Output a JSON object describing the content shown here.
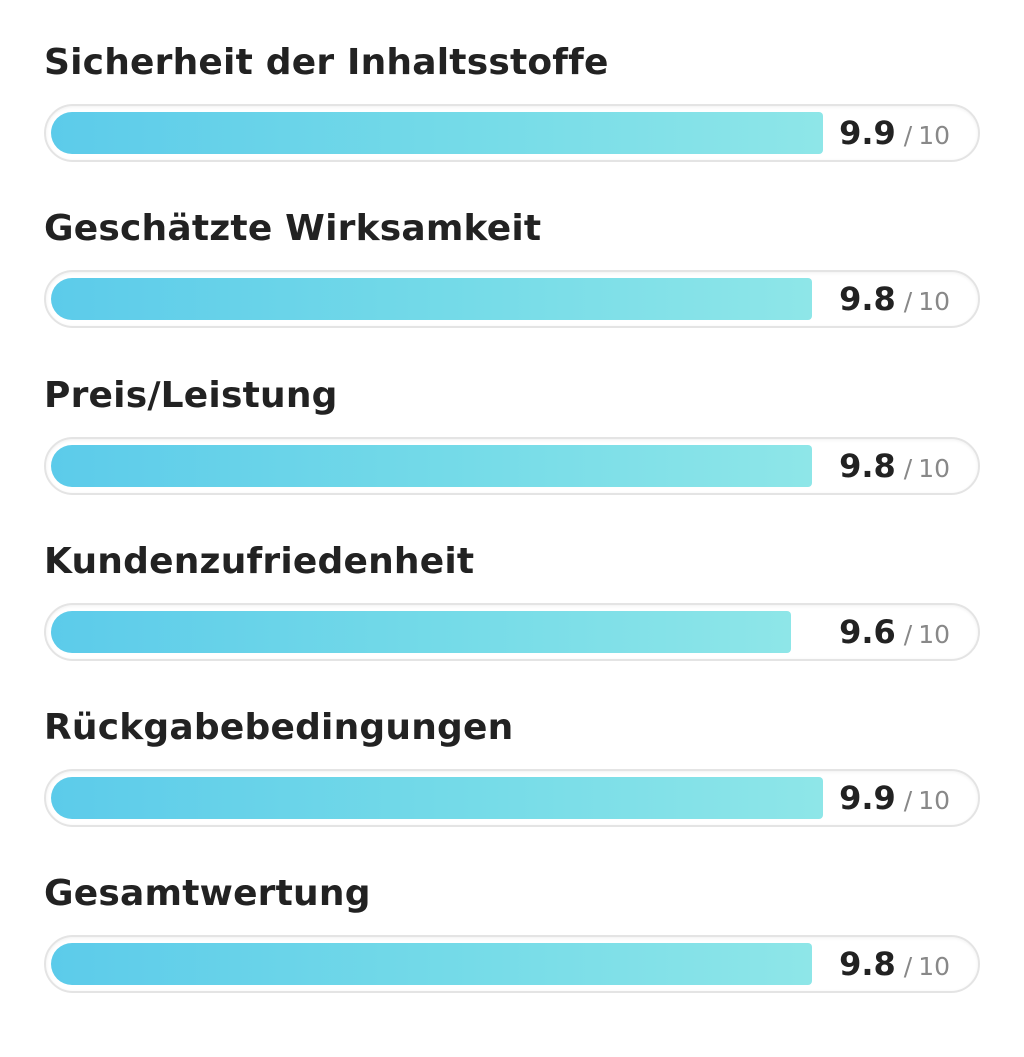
{
  "ratings": [
    {
      "label": "Sicherheit der Inhaltsstoffe",
      "score": "9.9",
      "value": 9.9,
      "separator": "/",
      "max": "10"
    },
    {
      "label": "Geschätzte Wirksamkeit",
      "score": "9.8",
      "value": 9.8,
      "separator": "/",
      "max": "10"
    },
    {
      "label": "Preis/Leistung",
      "score": "9.8",
      "value": 9.8,
      "separator": "/",
      "max": "10"
    },
    {
      "label": "Kundenzufriedenheit",
      "score": "9.6",
      "value": 9.6,
      "separator": "/",
      "max": "10"
    },
    {
      "label": "Rückgabebedingungen",
      "score": "9.9",
      "value": 9.9,
      "separator": "/",
      "max": "10"
    },
    {
      "label": "Gesamtwertung",
      "score": "9.8",
      "value": 9.8,
      "separator": "/",
      "max": "10"
    }
  ],
  "colors": {
    "fill_start": "#5ccbea",
    "fill_end": "#8ee6e8",
    "track_border": "#e4e4e4",
    "label_text": "#222222",
    "max_text": "#888888"
  }
}
